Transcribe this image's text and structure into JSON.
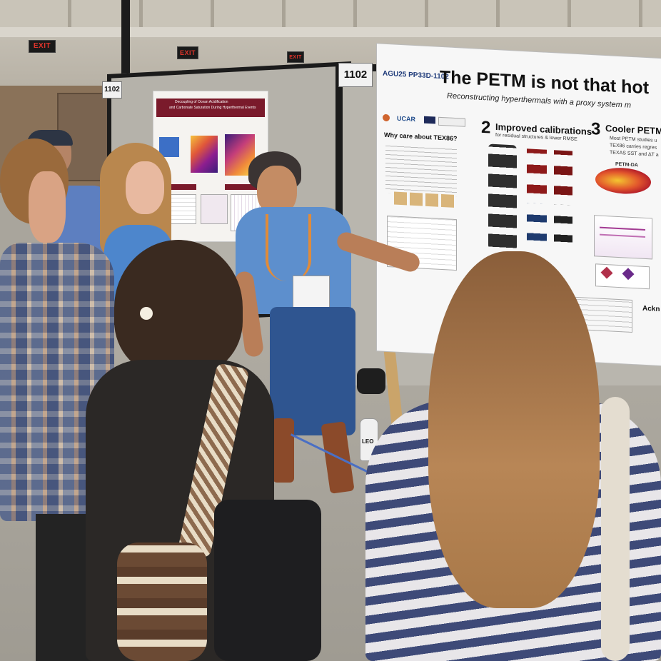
{
  "scene": {
    "exit_signs": [
      "EXIT",
      "EXIT",
      "EXIT"
    ],
    "board_numbers": {
      "left": "1102",
      "right": "1102"
    },
    "poster_right": {
      "title": "The PETM is not that hot",
      "subtitle": "Reconstructing hyperthermals with a proxy system m",
      "id_label": "AGU25 PP33D-1102",
      "logos": "UCAR",
      "section1": "Why care about TEX86?",
      "section2_num": "2",
      "section2": "Improved calibrations",
      "section2_sub": "for residual structures & lower RMSE",
      "section3_num": "3",
      "section3": "Cooler PETM",
      "section3_bullet1": "Most PETM studies u",
      "section3_bullet2": "TEX86 carries regres",
      "section3_bullet3": "TEXAS SST and ΔT a",
      "map_label": "PETM-DA",
      "ack": "Ackn"
    },
    "poster_left": {
      "title_line1": "Decoupling of Ocean Acidification",
      "title_line2": "and Carbonate Saturation During Hyperthermal Events"
    },
    "bottle_label": "LEO",
    "colors": {
      "floor": "#a8a49b",
      "poster_board": "#b9b6ae",
      "poster_frame": "#1b1b1b",
      "blue_shirt": "#4a7fc0",
      "jeans": "#2d4f86",
      "left_poster_header": "#7a1a2b"
    }
  }
}
